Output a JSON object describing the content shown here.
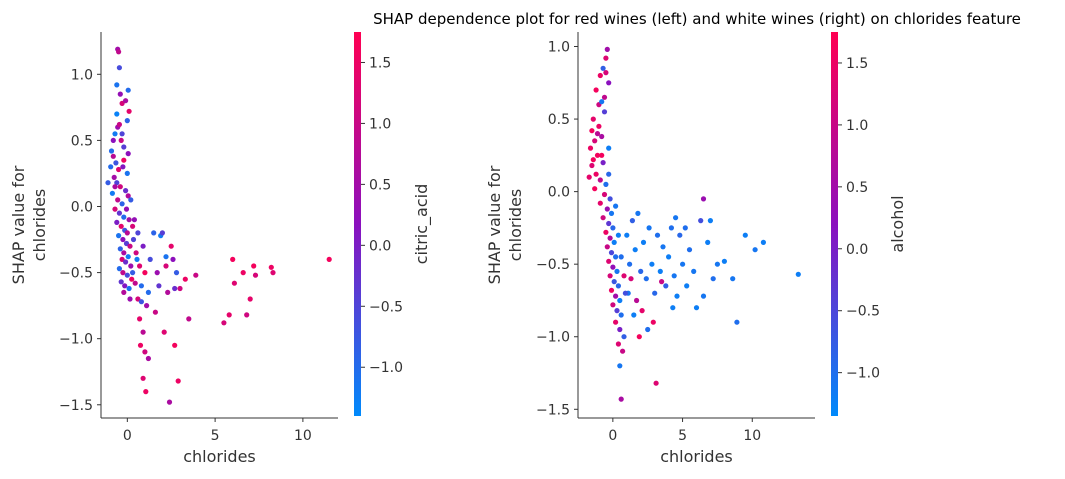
{
  "title": "SHAP dependence plot for red wines (left) and white wines (right) on chlorides feature",
  "colors": {
    "low": "#008afb",
    "mid": "#8b10be",
    "high": "#ff0052",
    "axis": "#333333"
  },
  "chart_data": [
    {
      "type": "scatter",
      "panel": "red wines (left)",
      "xlabel": "chlorides",
      "ylabel_lines": [
        "SHAP value for",
        "chlorides"
      ],
      "xlim": [
        -1.5,
        12
      ],
      "ylim": [
        -1.6,
        1.32
      ],
      "xticks": [
        0,
        5,
        10
      ],
      "xtick_labels": [
        "0",
        "5",
        "10"
      ],
      "yticks": [
        1.0,
        0.5,
        0.0,
        -0.5,
        -1.0,
        -1.5
      ],
      "ytick_labels": [
        "1.0",
        "0.5",
        "0.0",
        "−0.5",
        "−1.0",
        "−1.5"
      ],
      "colorbar": {
        "label": "citric_acid",
        "range": [
          -1.4,
          1.75
        ],
        "ticks": [
          1.5,
          1.0,
          0.5,
          0.0,
          -0.5,
          -1.0
        ],
        "tick_labels": [
          "1.5",
          "1.0",
          "0.5",
          "0.0",
          "−0.5",
          "−1.0"
        ]
      },
      "points": [
        [
          -0.55,
          1.19,
          0.5
        ],
        [
          -0.5,
          1.17,
          0.9
        ],
        [
          -0.45,
          1.05,
          -0.6
        ],
        [
          -0.6,
          0.92,
          -1.1
        ],
        [
          -0.4,
          0.85,
          0.3
        ],
        [
          -0.3,
          0.78,
          1.2
        ],
        [
          0.05,
          0.88,
          -1.0
        ],
        [
          -0.1,
          0.8,
          0.6
        ],
        [
          0.1,
          0.72,
          1.4
        ],
        [
          0.0,
          0.65,
          -0.9
        ],
        [
          -0.55,
          0.6,
          0.4
        ],
        [
          -0.7,
          0.55,
          -1.2
        ],
        [
          -0.35,
          0.5,
          1.0
        ],
        [
          -0.2,
          0.45,
          -0.4
        ],
        [
          0.05,
          0.4,
          0.2
        ],
        [
          -0.9,
          0.42,
          -1.0
        ],
        [
          -0.8,
          0.38,
          0.8
        ],
        [
          -0.65,
          0.33,
          -0.7
        ],
        [
          -0.5,
          0.28,
          1.3
        ],
        [
          -0.25,
          0.3,
          0.1
        ],
        [
          0.0,
          0.25,
          -1.1
        ],
        [
          -0.75,
          0.22,
          0.5
        ],
        [
          -0.6,
          0.18,
          -0.5
        ],
        [
          -1.1,
          0.18,
          -0.8
        ],
        [
          -0.4,
          0.15,
          1.1
        ],
        [
          -0.1,
          0.12,
          -0.2
        ],
        [
          0.05,
          0.08,
          0.7
        ],
        [
          -0.85,
          0.1,
          -1.2
        ],
        [
          -0.55,
          0.05,
          0.9
        ],
        [
          -0.3,
          0.02,
          -0.9
        ],
        [
          -0.05,
          -0.02,
          0.3
        ],
        [
          -0.7,
          -0.02,
          1.2
        ],
        [
          -0.45,
          -0.05,
          -0.3
        ],
        [
          -0.2,
          -0.08,
          -1.0
        ],
        [
          0.1,
          -0.1,
          0.5
        ],
        [
          -0.6,
          -0.12,
          0.0
        ],
        [
          -0.35,
          -0.15,
          1.4
        ],
        [
          -0.15,
          -0.18,
          -0.7
        ],
        [
          0.0,
          -0.2,
          0.8
        ],
        [
          -0.5,
          -0.22,
          -1.1
        ],
        [
          -0.25,
          -0.25,
          0.2
        ],
        [
          -0.05,
          -0.28,
          -0.4
        ],
        [
          0.15,
          -0.3,
          1.0
        ],
        [
          -0.4,
          -0.32,
          -0.9
        ],
        [
          -0.2,
          -0.35,
          0.6
        ],
        [
          0.05,
          -0.38,
          -1.2
        ],
        [
          -0.3,
          -0.4,
          1.2
        ],
        [
          -0.1,
          -0.42,
          -0.2
        ],
        [
          0.2,
          -0.45,
          0.4
        ],
        [
          -0.45,
          -0.47,
          -1.0
        ],
        [
          -0.25,
          -0.5,
          0.9
        ],
        [
          0.0,
          -0.52,
          -0.6
        ],
        [
          0.25,
          -0.55,
          1.5
        ],
        [
          -0.35,
          -0.57,
          -0.3
        ],
        [
          -0.15,
          -0.6,
          0.1
        ],
        [
          0.1,
          -0.62,
          -1.1
        ],
        [
          -0.2,
          -0.65,
          0.7
        ],
        [
          0.3,
          -0.5,
          -0.8
        ],
        [
          0.5,
          -0.35,
          1.1
        ],
        [
          0.6,
          -0.2,
          -0.5
        ],
        [
          0.4,
          -0.1,
          0.3
        ],
        [
          0.7,
          -0.45,
          1.3
        ],
        [
          0.8,
          -0.6,
          -1.0
        ],
        [
          0.9,
          -0.3,
          0.0
        ],
        [
          1.0,
          -0.5,
          1.6
        ],
        [
          0.6,
          -0.7,
          1.2
        ],
        [
          0.8,
          -0.72,
          -0.7
        ],
        [
          1.1,
          -0.75,
          0.5
        ],
        [
          0.7,
          -0.85,
          1.4
        ],
        [
          0.9,
          -0.95,
          0.8
        ],
        [
          0.75,
          -1.05,
          1.5
        ],
        [
          1.0,
          -1.1,
          1.1
        ],
        [
          1.2,
          -1.15,
          0.6
        ],
        [
          0.9,
          -1.3,
          1.3
        ],
        [
          1.05,
          -1.4,
          1.5
        ],
        [
          1.5,
          -0.2,
          -0.9
        ],
        [
          1.3,
          -0.4,
          -0.6
        ],
        [
          1.7,
          -0.5,
          0.4
        ],
        [
          1.2,
          -0.65,
          -1.0
        ],
        [
          1.6,
          -0.8,
          1.0
        ],
        [
          1.9,
          -0.22,
          -1.2
        ],
        [
          2.0,
          -0.2,
          -0.4
        ],
        [
          2.2,
          -0.45,
          1.2
        ],
        [
          1.8,
          -0.6,
          -0.3
        ],
        [
          2.3,
          -0.65,
          0.7
        ],
        [
          2.5,
          -0.3,
          1.4
        ],
        [
          2.6,
          -0.4,
          0.2
        ],
        [
          2.8,
          -0.5,
          -0.8
        ],
        [
          2.7,
          -1.05,
          1.6
        ],
        [
          2.9,
          -1.32,
          1.5
        ],
        [
          2.4,
          -1.48,
          0.6
        ],
        [
          2.1,
          -0.95,
          1.3
        ],
        [
          3.0,
          -0.62,
          1.1
        ],
        [
          3.3,
          -0.55,
          1.5
        ],
        [
          3.9,
          -0.52,
          1.0
        ],
        [
          2.2,
          -0.38,
          -1.1
        ],
        [
          2.7,
          -0.62,
          -0.2
        ],
        [
          3.5,
          -0.85,
          0.9
        ],
        [
          5.5,
          -0.88,
          1.2
        ],
        [
          5.8,
          -0.82,
          1.4
        ],
        [
          6.0,
          -0.4,
          1.6
        ],
        [
          6.1,
          -0.58,
          1.3
        ],
        [
          6.6,
          -0.5,
          1.5
        ],
        [
          6.8,
          -0.82,
          1.1
        ],
        [
          7.0,
          -0.7,
          1.4
        ],
        [
          7.2,
          -0.45,
          1.6
        ],
        [
          7.3,
          -0.52,
          1.2
        ],
        [
          8.2,
          -0.46,
          1.5
        ],
        [
          8.3,
          -0.5,
          1.3
        ],
        [
          11.5,
          -0.4,
          1.6
        ],
        [
          -0.6,
          0.7,
          -1.3
        ],
        [
          -0.45,
          0.62,
          1.0
        ],
        [
          -0.3,
          0.55,
          -0.5
        ],
        [
          -0.8,
          0.5,
          0.2
        ],
        [
          -0.95,
          0.3,
          -1.0
        ],
        [
          -0.2,
          0.35,
          1.5
        ],
        [
          -0.7,
          0.15,
          0.6
        ],
        [
          0.2,
          0.05,
          -0.8
        ],
        [
          0.3,
          -0.15,
          1.2
        ],
        [
          0.35,
          -0.25,
          -0.5
        ],
        [
          0.45,
          -0.58,
          0.9
        ],
        [
          0.55,
          -0.4,
          -1.2
        ],
        [
          0.15,
          -0.7,
          0.4
        ]
      ]
    },
    {
      "type": "scatter",
      "panel": "white wines (right)",
      "xlabel": "chlorides",
      "ylabel_lines": [
        "SHAP value for",
        "chlorides"
      ],
      "xlim": [
        -2.5,
        14.5
      ],
      "ylim": [
        -1.56,
        1.1
      ],
      "xticks": [
        0,
        5,
        10
      ],
      "xtick_labels": [
        "0",
        "5",
        "10"
      ],
      "yticks": [
        1.0,
        0.5,
        0.0,
        -0.5,
        -1.0,
        -1.5
      ],
      "ytick_labels": [
        "1.0",
        "0.5",
        "0.0",
        "−0.5",
        "−1.0",
        "−1.5"
      ],
      "colorbar": {
        "label": "alcohol",
        "range": [
          -1.35,
          1.75
        ],
        "ticks": [
          1.5,
          1.0,
          0.5,
          0.0,
          -0.5,
          -1.0
        ],
        "tick_labels": [
          "1.5",
          "1.0",
          "0.5",
          "0.0",
          "−0.5",
          "−1.0"
        ]
      },
      "points": [
        [
          -0.4,
          0.98,
          0.5
        ],
        [
          -0.5,
          0.92,
          1.3
        ],
        [
          -0.7,
          0.85,
          -0.8
        ],
        [
          -0.9,
          0.8,
          1.5
        ],
        [
          -0.3,
          0.75,
          0.2
        ],
        [
          -1.2,
          0.7,
          1.6
        ],
        [
          -1.0,
          0.6,
          1.1
        ],
        [
          -0.6,
          0.55,
          -0.4
        ],
        [
          -1.4,
          0.5,
          1.4
        ],
        [
          -1.5,
          0.42,
          1.6
        ],
        [
          -1.3,
          0.35,
          1.2
        ],
        [
          -0.8,
          0.38,
          0.6
        ],
        [
          -1.6,
          0.3,
          1.5
        ],
        [
          -1.1,
          0.25,
          1.6
        ],
        [
          -0.7,
          0.2,
          0.0
        ],
        [
          -1.5,
          0.18,
          1.3
        ],
        [
          -1.2,
          0.12,
          1.5
        ],
        [
          -0.9,
          0.08,
          0.9
        ],
        [
          -0.5,
          0.05,
          -1.0
        ],
        [
          -1.3,
          0.02,
          1.6
        ],
        [
          -0.6,
          -0.02,
          1.2
        ],
        [
          -0.2,
          -0.05,
          -0.6
        ],
        [
          -0.9,
          -0.08,
          1.4
        ],
        [
          -0.4,
          -0.12,
          0.4
        ],
        [
          -0.1,
          -0.15,
          -1.1
        ],
        [
          -0.7,
          -0.18,
          1.1
        ],
        [
          -0.3,
          -0.22,
          -0.3
        ],
        [
          0.0,
          -0.25,
          -0.9
        ],
        [
          -0.5,
          -0.28,
          1.5
        ],
        [
          -0.2,
          -0.32,
          0.7
        ],
        [
          0.1,
          -0.35,
          -1.2
        ],
        [
          -0.4,
          -0.38,
          1.0
        ],
        [
          -0.1,
          -0.42,
          -0.5
        ],
        [
          0.2,
          -0.45,
          -1.0
        ],
        [
          -0.3,
          -0.48,
          1.3
        ],
        [
          0.0,
          -0.52,
          0.3
        ],
        [
          0.3,
          -0.55,
          -1.1
        ],
        [
          -0.2,
          -0.58,
          1.2
        ],
        [
          0.1,
          -0.62,
          -0.7
        ],
        [
          0.4,
          -0.65,
          -0.9
        ],
        [
          -0.1,
          -0.68,
          1.5
        ],
        [
          0.2,
          -0.72,
          0.5
        ],
        [
          0.5,
          -0.75,
          -1.2
        ],
        [
          0.0,
          -0.78,
          1.1
        ],
        [
          0.3,
          -0.82,
          -0.4
        ],
        [
          0.6,
          -0.85,
          -1.0
        ],
        [
          0.2,
          -0.9,
          1.4
        ],
        [
          0.5,
          -0.95,
          0.0
        ],
        [
          0.8,
          -1.0,
          -0.8
        ],
        [
          0.4,
          -1.05,
          1.3
        ],
        [
          0.7,
          -1.1,
          1.0
        ],
        [
          0.5,
          -1.2,
          -1.1
        ],
        [
          0.6,
          -1.43,
          0.6
        ],
        [
          3.1,
          -1.32,
          1.3
        ],
        [
          1.0,
          -0.3,
          -1.2
        ],
        [
          1.2,
          -0.5,
          -1.0
        ],
        [
          1.4,
          -0.2,
          -0.8
        ],
        [
          1.1,
          -0.7,
          -1.1
        ],
        [
          1.6,
          -0.4,
          -1.2
        ],
        [
          1.3,
          -0.6,
          1.2
        ],
        [
          1.8,
          -0.15,
          -1.1
        ],
        [
          2.0,
          -0.55,
          -0.9
        ],
        [
          1.7,
          -0.75,
          0.8
        ],
        [
          2.2,
          -0.35,
          -1.2
        ],
        [
          2.4,
          -0.6,
          -1.0
        ],
        [
          2.1,
          -0.82,
          1.4
        ],
        [
          2.6,
          -0.25,
          -1.1
        ],
        [
          2.8,
          -0.5,
          -1.2
        ],
        [
          3.0,
          -0.7,
          -0.9
        ],
        [
          3.2,
          -0.3,
          -1.0
        ],
        [
          2.9,
          -0.9,
          1.5
        ],
        [
          3.4,
          -0.55,
          -1.2
        ],
        [
          3.6,
          -0.38,
          -1.1
        ],
        [
          3.8,
          -0.65,
          -0.8
        ],
        [
          4.0,
          -0.45,
          -1.2
        ],
        [
          4.2,
          -0.25,
          -1.0
        ],
        [
          4.4,
          -0.58,
          -1.1
        ],
        [
          4.6,
          -0.72,
          -1.2
        ],
        [
          4.8,
          -0.3,
          -0.9
        ],
        [
          5.0,
          -0.5,
          -1.1
        ],
        [
          5.3,
          -0.65,
          -1.2
        ],
        [
          5.5,
          -0.4,
          -1.0
        ],
        [
          5.8,
          -0.55,
          -1.1
        ],
        [
          6.0,
          -0.8,
          -1.2
        ],
        [
          6.3,
          -0.2,
          -0.6
        ],
        [
          6.5,
          -0.72,
          -1.1
        ],
        [
          6.8,
          -0.35,
          -1.2
        ],
        [
          7.2,
          -0.6,
          -1.0
        ],
        [
          7.5,
          -0.5,
          -1.1
        ],
        [
          8.0,
          -0.48,
          -1.2
        ],
        [
          8.6,
          -0.6,
          -1.1
        ],
        [
          8.9,
          -0.9,
          -1.0
        ],
        [
          9.5,
          -0.3,
          -1.2
        ],
        [
          10.2,
          -0.4,
          -1.1
        ],
        [
          10.8,
          -0.35,
          -1.2
        ],
        [
          13.3,
          -0.57,
          -1.2
        ],
        [
          4.5,
          -0.18,
          -1.1
        ],
        [
          5.2,
          -0.25,
          -1.0
        ],
        [
          6.5,
          -0.05,
          0.4
        ],
        [
          7.0,
          -0.2,
          -1.2
        ],
        [
          1.5,
          -0.85,
          -1.2
        ],
        [
          2.5,
          -0.95,
          -1.0
        ],
        [
          1.9,
          -1.0,
          1.6
        ],
        [
          3.5,
          -0.62,
          1.0
        ],
        [
          4.3,
          -0.8,
          -1.2
        ],
        [
          -1.0,
          0.45,
          1.5
        ],
        [
          -0.8,
          0.25,
          1.6
        ],
        [
          -1.7,
          0.1,
          1.4
        ],
        [
          -0.6,
          0.65,
          0.9
        ],
        [
          -0.3,
          0.3,
          -1.2
        ],
        [
          0.2,
          -0.1,
          -1.1
        ],
        [
          0.4,
          -0.3,
          -1.2
        ],
        [
          0.6,
          -0.45,
          -1.0
        ],
        [
          0.8,
          -0.58,
          1.3
        ],
        [
          0.9,
          -0.7,
          -0.6
        ],
        [
          -0.5,
          0.82,
          1.2
        ],
        [
          -0.8,
          0.62,
          -1.1
        ],
        [
          -1.1,
          0.4,
          0.8
        ],
        [
          -1.4,
          0.22,
          1.6
        ],
        [
          -0.3,
          0.12,
          -0.9
        ]
      ]
    }
  ]
}
